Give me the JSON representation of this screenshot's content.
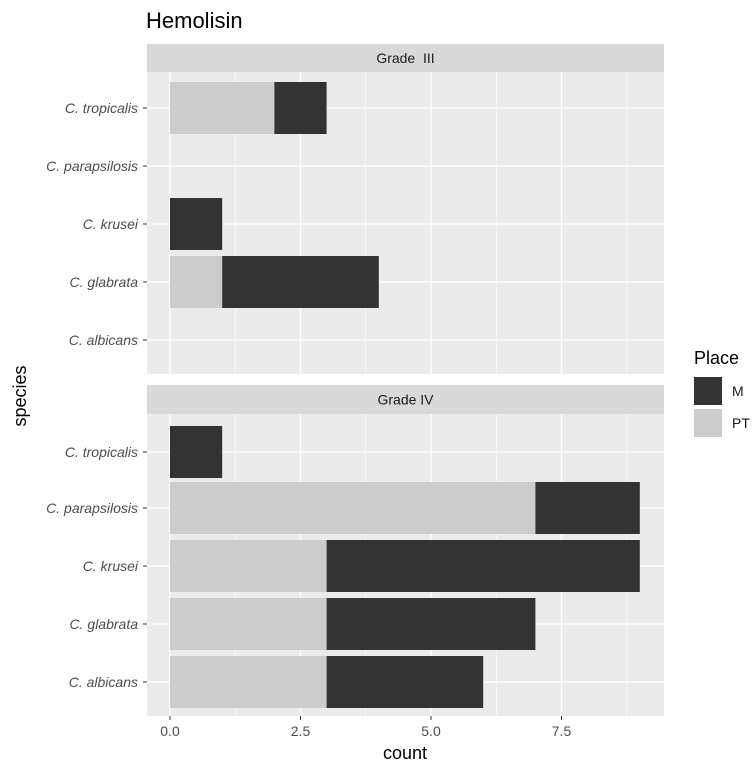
{
  "chart_data": {
    "type": "bar",
    "orientation": "horizontal",
    "stacked": true,
    "title": "Hemolisin",
    "xlabel": "count",
    "ylabel": "species",
    "xlim": [
      0,
      9
    ],
    "x_ticks": [
      "0.0",
      "2.5",
      "5.0",
      "7.5"
    ],
    "x_tick_values": [
      0,
      2.5,
      5,
      7.5
    ],
    "categories": [
      "C. tropicalis",
      "C. parapsilosis",
      "C. krusei",
      "C. glabrata",
      "C. albicans"
    ],
    "legend": {
      "title": "Place",
      "position": "right",
      "items": [
        {
          "label": "M",
          "color": "#333333"
        },
        {
          "label": "PT",
          "color": "#cccccc"
        }
      ]
    },
    "facets": [
      {
        "label": "Grade  III",
        "series": [
          {
            "name": "PT",
            "color": "#cccccc",
            "values": [
              2,
              0,
              0,
              1,
              0
            ]
          },
          {
            "name": "M",
            "color": "#333333",
            "values": [
              1,
              0,
              1,
              3,
              0
            ]
          }
        ]
      },
      {
        "label": "Grade IV",
        "series": [
          {
            "name": "PT",
            "color": "#cccccc",
            "values": [
              0,
              7,
              3,
              3,
              3
            ]
          },
          {
            "name": "M",
            "color": "#333333",
            "values": [
              1,
              2,
              6,
              4,
              3
            ]
          }
        ]
      }
    ],
    "grid": true
  },
  "colors": {
    "panel_bg": "#ebebeb",
    "strip_bg": "#d9d9d9",
    "grid": "#ffffff"
  }
}
